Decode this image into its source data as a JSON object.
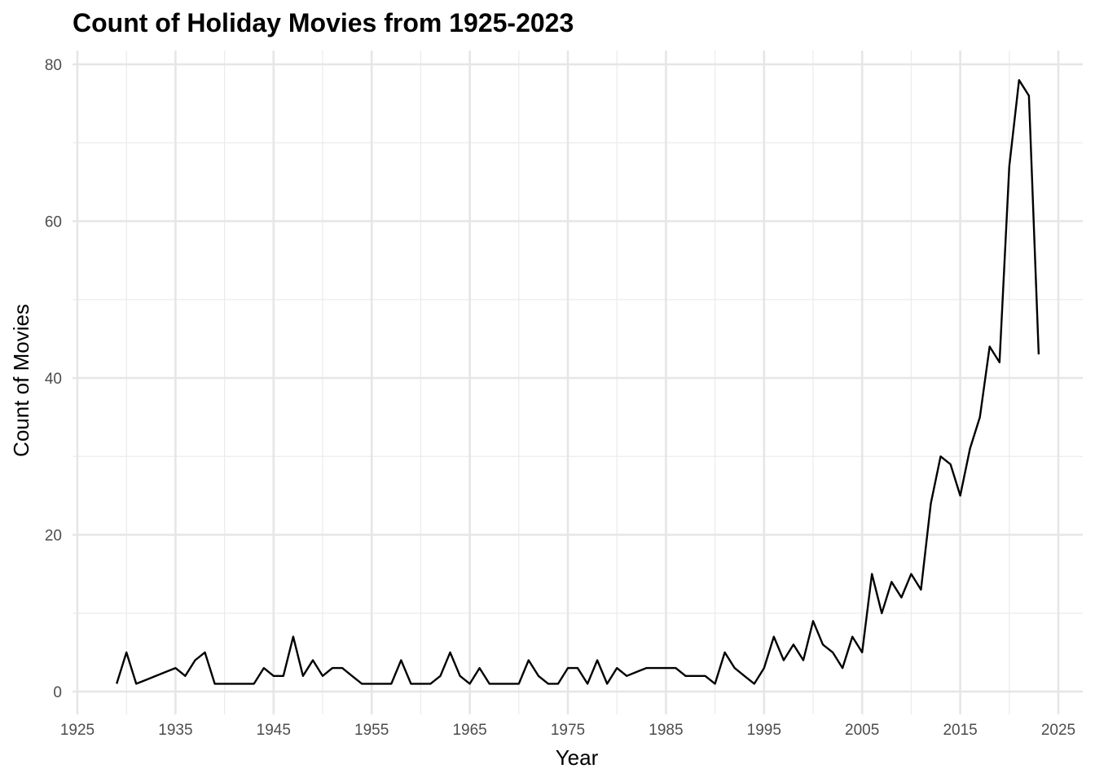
{
  "chart_data": {
    "type": "line",
    "title": "Count of Holiday Movies from 1925-2023",
    "xlabel": "Year",
    "ylabel": "Count of Movies",
    "xlim": [
      1925,
      2025
    ],
    "ylim": [
      0,
      80
    ],
    "x_ticks": [
      1925,
      1935,
      1945,
      1955,
      1965,
      1975,
      1985,
      1995,
      2005,
      2015,
      2025
    ],
    "x_minor_ticks": [
      1930,
      1940,
      1950,
      1960,
      1970,
      1980,
      1990,
      2000,
      2010,
      2020
    ],
    "y_ticks": [
      0,
      20,
      40,
      60,
      80
    ],
    "y_minor_ticks": [
      10,
      30,
      50,
      70
    ],
    "grid": true,
    "legend": "none",
    "series": [
      {
        "color": "#000000",
        "x": [
          1929,
          1930,
          1931,
          1932,
          1933,
          1934,
          1935,
          1936,
          1937,
          1938,
          1939,
          1940,
          1941,
          1942,
          1943,
          1944,
          1945,
          1946,
          1947,
          1948,
          1949,
          1950,
          1951,
          1952,
          1953,
          1954,
          1955,
          1956,
          1957,
          1958,
          1959,
          1960,
          1961,
          1962,
          1963,
          1964,
          1965,
          1966,
          1967,
          1968,
          1969,
          1970,
          1971,
          1972,
          1973,
          1974,
          1975,
          1976,
          1977,
          1978,
          1979,
          1980,
          1981,
          1982,
          1983,
          1984,
          1985,
          1986,
          1987,
          1988,
          1989,
          1990,
          1991,
          1992,
          1993,
          1994,
          1995,
          1996,
          1997,
          1998,
          1999,
          2000,
          2001,
          2002,
          2003,
          2004,
          2005,
          2006,
          2007,
          2008,
          2009,
          2010,
          2011,
          2012,
          2013,
          2014,
          2015,
          2016,
          2017,
          2018,
          2019,
          2020,
          2021,
          2022,
          2023
        ],
        "y": [
          1,
          5,
          1,
          1.5,
          2,
          2.5,
          3,
          2,
          4,
          5,
          1,
          1,
          1,
          1,
          1,
          3,
          2,
          2,
          7,
          2,
          4,
          2,
          3,
          3,
          2,
          1,
          1,
          1,
          1,
          4,
          1,
          1,
          1,
          2,
          5,
          2,
          1,
          3,
          1,
          1,
          1,
          1,
          4,
          2,
          1,
          1,
          3,
          3,
          1,
          4,
          1,
          3,
          2,
          2.5,
          3,
          3,
          3,
          3,
          2,
          2,
          2,
          1,
          5,
          3,
          2,
          1,
          3,
          7,
          4,
          6,
          4,
          9,
          6,
          5,
          3,
          7,
          5,
          15,
          10,
          14,
          12,
          15,
          13,
          24,
          30,
          29,
          25,
          31,
          35,
          44,
          42,
          67,
          78,
          76,
          43
        ]
      }
    ]
  }
}
